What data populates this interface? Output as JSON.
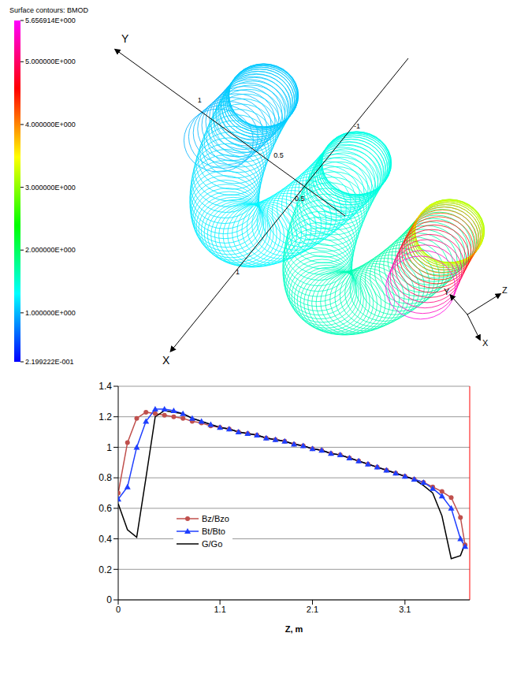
{
  "figure": {
    "title": "Surface contours: BMOD",
    "colorbar": {
      "range": [
        0.2199222,
        5.656914
      ],
      "ticks": [
        {
          "value": 5.656914,
          "label": "5.656914E+000"
        },
        {
          "value": 5,
          "label": "5.000000E+000"
        },
        {
          "value": 4,
          "label": "4.000000E+000"
        },
        {
          "value": 3,
          "label": "3.000000E+000"
        },
        {
          "value": 2,
          "label": "2.000000E+000"
        },
        {
          "value": 1,
          "label": "1.000000E+000"
        },
        {
          "value": 0.2199222,
          "label": "2.199222E-001"
        }
      ]
    },
    "axes": [
      {
        "name": "Y",
        "ticks": [
          "1",
          "0.5"
        ]
      },
      {
        "name": "X",
        "ticks": [
          "1",
          "0.5",
          "-1"
        ]
      }
    ],
    "triad": [
      "X",
      "Y",
      "Z"
    ]
  },
  "chart_data": {
    "type": "line",
    "x_label": "Z, m",
    "x": [
      0,
      0.1,
      0.2,
      0.3,
      0.4,
      0.5,
      0.6,
      0.7,
      0.8,
      0.9,
      1.0,
      1.1,
      1.2,
      1.3,
      1.4,
      1.5,
      1.6,
      1.7,
      1.8,
      1.9,
      2.0,
      2.1,
      2.2,
      2.3,
      2.4,
      2.5,
      2.6,
      2.7,
      2.8,
      2.9,
      3.0,
      3.1,
      3.2,
      3.3,
      3.4,
      3.5,
      3.6,
      3.7,
      3.75
    ],
    "series": [
      {
        "name": "Bz/Bzo",
        "color": "#c0504d",
        "marker": "circle",
        "values": [
          0.7,
          1.03,
          1.19,
          1.23,
          1.22,
          1.21,
          1.2,
          1.19,
          1.17,
          1.16,
          1.14,
          1.13,
          1.12,
          1.1,
          1.09,
          1.08,
          1.06,
          1.05,
          1.04,
          1.02,
          1.01,
          0.99,
          0.98,
          0.96,
          0.95,
          0.93,
          0.91,
          0.89,
          0.87,
          0.85,
          0.83,
          0.81,
          0.79,
          0.77,
          0.74,
          0.71,
          0.67,
          0.54,
          0.36
        ]
      },
      {
        "name": "Bt/Bto",
        "color": "#1f3fff",
        "marker": "triangle",
        "values": [
          0.66,
          0.74,
          1.0,
          1.17,
          1.25,
          1.25,
          1.24,
          1.22,
          1.19,
          1.17,
          1.15,
          1.13,
          1.12,
          1.1,
          1.09,
          1.08,
          1.06,
          1.05,
          1.04,
          1.02,
          1.01,
          0.99,
          0.98,
          0.96,
          0.95,
          0.93,
          0.91,
          0.89,
          0.87,
          0.85,
          0.83,
          0.81,
          0.79,
          0.77,
          0.73,
          0.68,
          0.6,
          0.4,
          0.35
        ]
      },
      {
        "name": "G/Go",
        "color": "#000000",
        "marker": "none",
        "values": [
          0.63,
          0.46,
          0.41,
          0.8,
          1.2,
          1.24,
          1.23,
          1.22,
          1.19,
          1.17,
          1.15,
          1.13,
          1.12,
          1.1,
          1.09,
          1.08,
          1.06,
          1.05,
          1.04,
          1.02,
          1.01,
          0.99,
          0.98,
          0.96,
          0.95,
          0.93,
          0.91,
          0.89,
          0.87,
          0.85,
          0.83,
          0.81,
          0.79,
          0.75,
          0.7,
          0.55,
          0.27,
          0.29,
          0.37
        ]
      }
    ],
    "xlim": [
      0,
      3.8
    ],
    "xticks": [
      0,
      1.1,
      2.1,
      3.1
    ],
    "ylim": [
      0,
      1.4
    ],
    "yticks": [
      0,
      0.2,
      0.4,
      0.6,
      0.8,
      1,
      1.2,
      1.4
    ],
    "grid": true,
    "legend": "left"
  }
}
